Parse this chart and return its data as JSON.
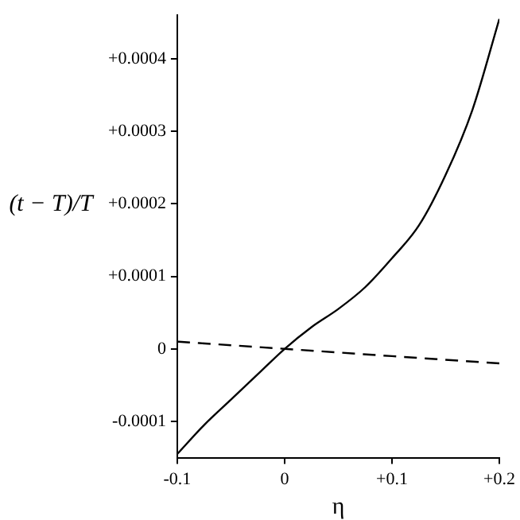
{
  "chart_data": {
    "type": "line",
    "xlabel": "η",
    "ylabel": "(t − T)/T",
    "series": [
      {
        "color": "#000000",
        "line_style": "solid",
        "x": [
          -0.1,
          -0.075,
          -0.05,
          -0.025,
          0,
          0.025,
          0.05,
          0.075,
          0.1,
          0.125,
          0.15,
          0.175,
          0.2
        ],
        "values": [
          -0.000145,
          -0.000105,
          -7e-05,
          -3.5e-05,
          0.0,
          3e-05,
          5.5e-05,
          8.5e-05,
          0.000125,
          0.00017,
          0.00024,
          0.00033,
          0.000455
        ]
      },
      {
        "color": "#000000",
        "line_style": "dashed",
        "x": [
          -0.1,
          0,
          0.1,
          0.2
        ],
        "values": [
          1e-05,
          0.0,
          -1e-05,
          -2e-05
        ]
      }
    ],
    "xlim": [
      -0.1,
      0.2
    ],
    "ylim": [
      -0.00015,
      0.00046
    ],
    "xticks": [
      -0.1,
      0,
      {
        "value": 0.1,
        "label": "+0.1"
      },
      {
        "value": 0.2,
        "label": "+0.2"
      }
    ],
    "yticks": [
      -0.0001,
      0,
      {
        "value": 0.0001,
        "label": "+0.0001"
      },
      {
        "value": 0.0002,
        "label": "+0.0002"
      },
      {
        "value": 0.0003,
        "label": "+0.0003"
      },
      {
        "value": 0.0004,
        "label": "+0.0004"
      }
    ],
    "grid": false,
    "legend": false,
    "marker": "none"
  }
}
